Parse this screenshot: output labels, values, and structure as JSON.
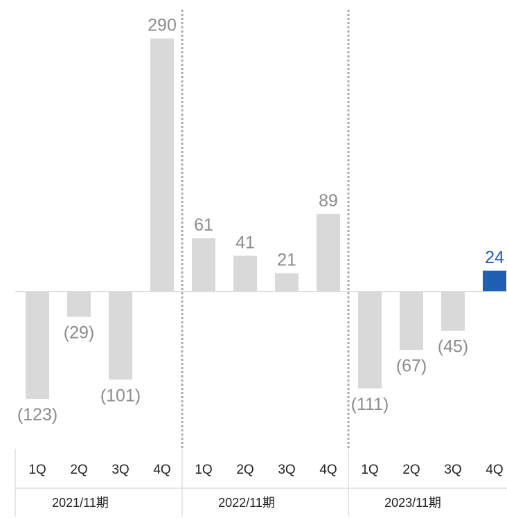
{
  "chart_data": {
    "type": "bar",
    "groups": [
      {
        "label": "2021/11期",
        "quarters": [
          "1Q",
          "2Q",
          "3Q",
          "4Q"
        ],
        "values": [
          -123,
          -29,
          -101,
          290
        ],
        "labels": [
          "(123)",
          "(29)",
          "(101)",
          "290"
        ]
      },
      {
        "label": "2022/11期",
        "quarters": [
          "1Q",
          "2Q",
          "3Q",
          "4Q"
        ],
        "values": [
          61,
          41,
          21,
          89
        ],
        "labels": [
          "61",
          "41",
          "21",
          "89"
        ]
      },
      {
        "label": "2023/11期",
        "quarters": [
          "1Q",
          "2Q",
          "3Q",
          "4Q"
        ],
        "values": [
          -111,
          -67,
          -45,
          24
        ],
        "labels": [
          "(111)",
          "(67)",
          "(45)",
          "24"
        ]
      }
    ],
    "highlight": {
      "group": 2,
      "index": 3
    },
    "ylim": [
      -140,
      300
    ],
    "colors": {
      "bar": "#d9d9d9",
      "highlight": "#1f5fb4",
      "label": "#8c8c8c",
      "axis": "#222222",
      "divider": "#aaaaaa"
    },
    "grid": false,
    "legend": "none"
  }
}
